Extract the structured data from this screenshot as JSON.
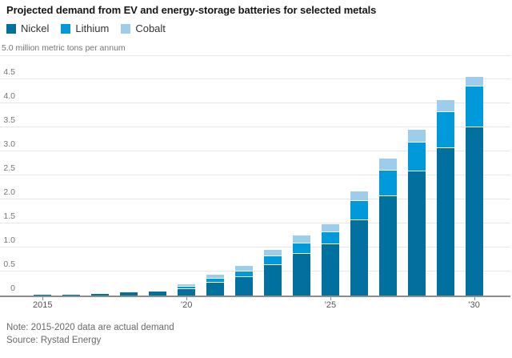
{
  "chart_data": {
    "type": "bar",
    "stacked": true,
    "title": "Projected demand from EV and energy-storage batteries for selected metals",
    "categories": [
      2015,
      2016,
      2017,
      2018,
      2019,
      2020,
      2021,
      2022,
      2023,
      2024,
      2025,
      2026,
      2027,
      2028,
      2029,
      2030
    ],
    "series": [
      {
        "name": "Nickel",
        "color": "#00719e",
        "values": [
          0.01,
          0.02,
          0.04,
          0.07,
          0.08,
          0.14,
          0.26,
          0.39,
          0.64,
          0.86,
          1.07,
          1.57,
          2.07,
          2.58,
          3.07,
          3.5
        ]
      },
      {
        "name": "Lithium",
        "color": "#009adb",
        "values": [
          0.005,
          0.005,
          0.01,
          0.02,
          0.02,
          0.05,
          0.09,
          0.11,
          0.17,
          0.22,
          0.25,
          0.4,
          0.53,
          0.61,
          0.75,
          0.85
        ]
      },
      {
        "name": "Cobalt",
        "color": "#9ecdec",
        "values": [
          0.005,
          0.005,
          0.01,
          0.01,
          0.02,
          0.05,
          0.09,
          0.11,
          0.14,
          0.17,
          0.16,
          0.2,
          0.25,
          0.26,
          0.25,
          0.2
        ]
      }
    ],
    "ylim": [
      0,
      5
    ],
    "ylabel": "million metric tons per annum",
    "y_ticks": [
      {
        "value": 0,
        "label": "0"
      },
      {
        "value": 0.5,
        "label": "0.5"
      },
      {
        "value": 1,
        "label": "1.0"
      },
      {
        "value": 1.5,
        "label": "1.5"
      },
      {
        "value": 2,
        "label": "2.0"
      },
      {
        "value": 2.5,
        "label": "2.5"
      },
      {
        "value": 3,
        "label": "3.0"
      },
      {
        "value": 3.5,
        "label": "3.5"
      },
      {
        "value": 4,
        "label": "4.0"
      },
      {
        "value": 4.5,
        "label": "4.5"
      },
      {
        "value": 5,
        "label": "5.0 million metric tons per annum"
      }
    ],
    "x_ticks": [
      {
        "year": 2015,
        "label": "2015"
      },
      {
        "year": 2020,
        "label": "’20"
      },
      {
        "year": 2025,
        "label": "’25"
      },
      {
        "year": 2030,
        "label": "’30"
      }
    ],
    "grid": true,
    "legend_position": "top-left",
    "note": "Note: 2015-2020 data are actual demand",
    "source": "Source: Rystad Energy"
  }
}
